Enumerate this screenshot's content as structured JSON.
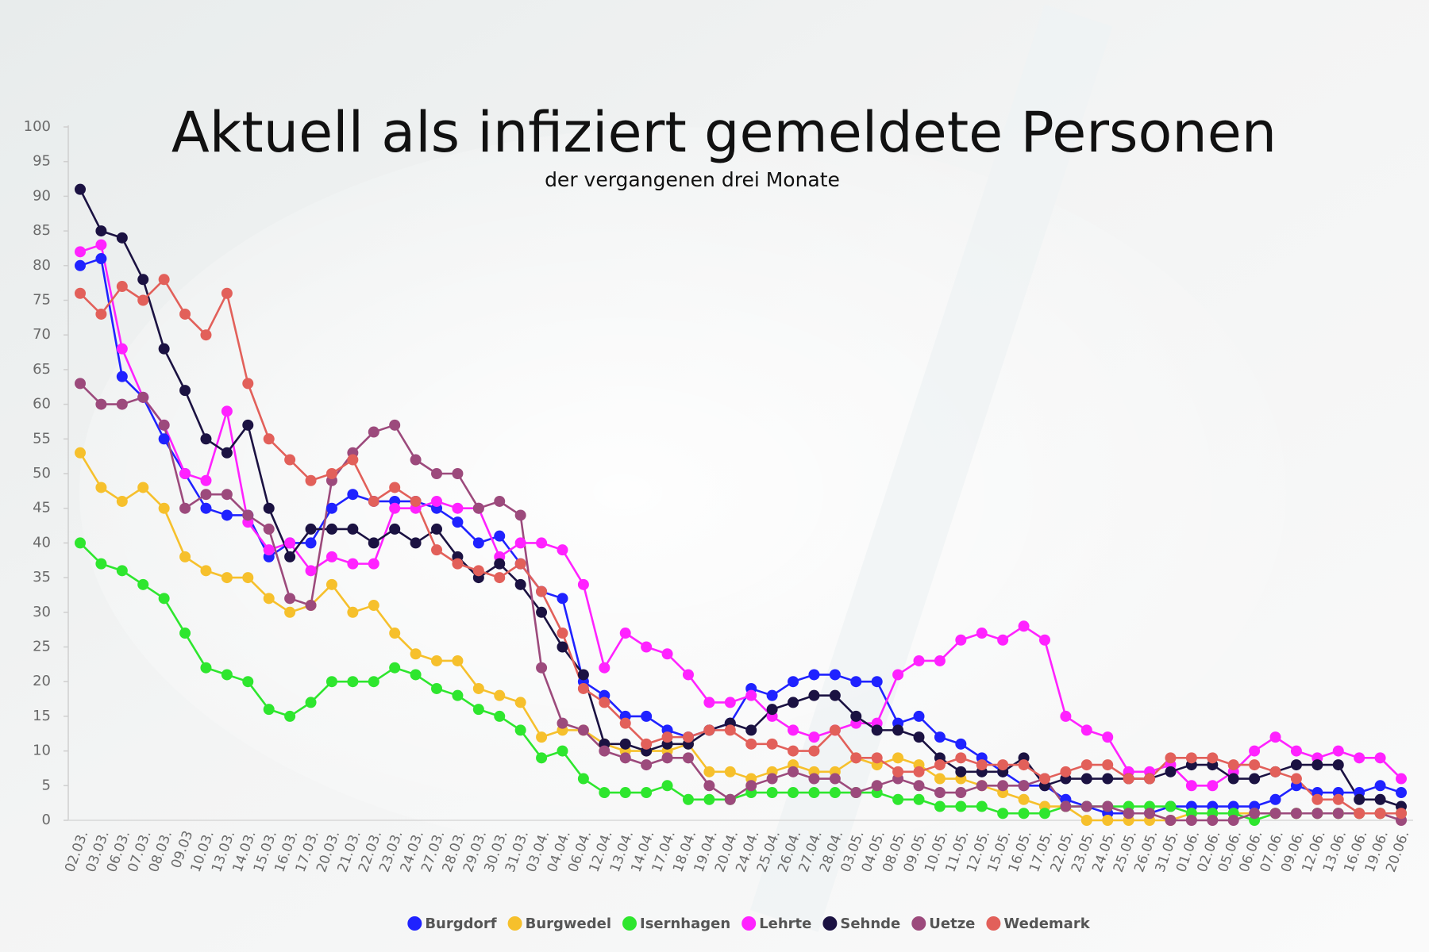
{
  "chart_data": {
    "type": "line",
    "title": "Aktuell als infiziert gemeldete Personen",
    "subtitle": "der vergangenen drei Monate",
    "categories": [
      "02.03.",
      "03.03.",
      "06.03.",
      "07.03.",
      "08.03.",
      "09.03",
      "10.03.",
      "13.03.",
      "14.03.",
      "15.03.",
      "16.03.",
      "17.03.",
      "20.03.",
      "21.03.",
      "22.03.",
      "23.03.",
      "24.03.",
      "27.03.",
      "28.03.",
      "29.03.",
      "30.03.",
      "31.03.",
      "03.04.",
      "04.04.",
      "06.04.",
      "12.04.",
      "13.04.",
      "14.04.",
      "17.04.",
      "18.04.",
      "19.04.",
      "20.04.",
      "24.04.",
      "25.04.",
      "26.04.",
      "27.04.",
      "28.04.",
      "03.05.",
      "04.05.",
      "08.05.",
      "09.05.",
      "10.05.",
      "11.05.",
      "12.05.",
      "15.05.",
      "16.05.",
      "17.05.",
      "22.05.",
      "23.05.",
      "24.05.",
      "25.05.",
      "26.05.",
      "31.05.",
      "01.06.",
      "02.06.",
      "05.06.",
      "06.06.",
      "07.06.",
      "09.06.",
      "12.06.",
      "13.06.",
      "16.06.",
      "19.06.",
      "20.06."
    ],
    "series": [
      {
        "name": "Burgdorf",
        "color": "#1f22ff",
        "values": [
          80,
          81,
          64,
          61,
          55,
          50,
          45,
          44,
          44,
          38,
          40,
          40,
          45,
          47,
          46,
          46,
          46,
          45,
          43,
          40,
          41,
          37,
          33,
          32,
          20,
          18,
          15,
          15,
          13,
          12,
          13,
          14,
          19,
          18,
          20,
          21,
          21,
          20,
          20,
          14,
          15,
          12,
          11,
          9,
          7,
          5,
          5,
          3,
          2,
          1,
          1,
          1,
          2,
          2,
          2,
          2,
          2,
          3,
          5,
          4,
          4,
          4,
          5,
          4
        ]
      },
      {
        "name": "Burgwedel",
        "color": "#f6c02c",
        "values": [
          53,
          48,
          46,
          48,
          45,
          38,
          36,
          35,
          35,
          32,
          30,
          31,
          34,
          30,
          31,
          27,
          24,
          23,
          23,
          19,
          18,
          17,
          12,
          13,
          13,
          11,
          10,
          10,
          10,
          11,
          7,
          7,
          6,
          7,
          8,
          7,
          7,
          9,
          8,
          9,
          8,
          6,
          6,
          5,
          4,
          3,
          2,
          2,
          0,
          0,
          0,
          0,
          0,
          1,
          1,
          1,
          1,
          1,
          1,
          1,
          1,
          1,
          1,
          1
        ]
      },
      {
        "name": "Isernhagen",
        "color": "#2ee62e",
        "values": [
          40,
          37,
          36,
          34,
          32,
          27,
          22,
          21,
          20,
          16,
          15,
          17,
          20,
          20,
          20,
          22,
          21,
          19,
          18,
          16,
          15,
          13,
          9,
          10,
          6,
          4,
          4,
          4,
          5,
          3,
          3,
          3,
          4,
          4,
          4,
          4,
          4,
          4,
          4,
          3,
          3,
          2,
          2,
          2,
          1,
          1,
          1,
          2,
          2,
          2,
          2,
          2,
          2,
          1,
          1,
          1,
          0,
          1,
          1,
          1,
          1,
          1,
          1,
          1
        ]
      },
      {
        "name": "Lehrte",
        "color": "#ff22ff",
        "values": [
          82,
          83,
          68,
          61,
          57,
          50,
          49,
          59,
          43,
          39,
          40,
          36,
          38,
          37,
          37,
          45,
          45,
          46,
          45,
          45,
          38,
          40,
          40,
          39,
          34,
          22,
          27,
          25,
          24,
          21,
          17,
          17,
          18,
          15,
          13,
          12,
          13,
          14,
          14,
          21,
          23,
          23,
          26,
          27,
          26,
          28,
          26,
          15,
          13,
          12,
          7,
          7,
          8,
          5,
          5,
          7,
          10,
          12,
          10,
          9,
          10,
          9,
          9,
          6
        ]
      },
      {
        "name": "Sehnde",
        "color": "#1b1242",
        "values": [
          91,
          85,
          84,
          78,
          68,
          62,
          55,
          53,
          57,
          45,
          38,
          42,
          42,
          42,
          40,
          42,
          40,
          42,
          38,
          35,
          37,
          34,
          30,
          25,
          21,
          11,
          11,
          10,
          11,
          11,
          13,
          14,
          13,
          16,
          17,
          18,
          18,
          15,
          13,
          13,
          12,
          9,
          7,
          7,
          7,
          9,
          5,
          6,
          6,
          6,
          6,
          6,
          7,
          8,
          8,
          6,
          6,
          7,
          8,
          8,
          8,
          3,
          3,
          2
        ]
      },
      {
        "name": "Uetze",
        "color": "#9c4a7c",
        "values": [
          63,
          60,
          60,
          61,
          57,
          45,
          47,
          47,
          44,
          42,
          32,
          31,
          49,
          53,
          56,
          57,
          52,
          50,
          50,
          45,
          46,
          44,
          22,
          14,
          13,
          10,
          9,
          8,
          9,
          9,
          5,
          3,
          5,
          6,
          7,
          6,
          6,
          4,
          5,
          6,
          5,
          4,
          4,
          5,
          5,
          5,
          6,
          2,
          2,
          2,
          1,
          1,
          0,
          0,
          0,
          0,
          1,
          1,
          1,
          1,
          1,
          1,
          1,
          0
        ]
      },
      {
        "name": "Wedemark",
        "color": "#e2605a",
        "values": [
          76,
          73,
          77,
          75,
          78,
          73,
          70,
          76,
          63,
          55,
          52,
          49,
          50,
          52,
          46,
          48,
          46,
          39,
          37,
          36,
          35,
          37,
          33,
          27,
          19,
          17,
          14,
          11,
          12,
          12,
          13,
          13,
          11,
          11,
          10,
          10,
          13,
          9,
          9,
          7,
          7,
          8,
          9,
          8,
          8,
          8,
          6,
          7,
          8,
          8,
          6,
          6,
          9,
          9,
          9,
          8,
          8,
          7,
          6,
          3,
          3,
          1,
          1,
          1
        ]
      }
    ],
    "ylim": [
      0,
      100
    ],
    "yticks": [
      0,
      5,
      10,
      15,
      20,
      25,
      30,
      35,
      40,
      45,
      50,
      55,
      60,
      65,
      70,
      75,
      80,
      85,
      90,
      95,
      100
    ],
    "grid": false,
    "legend": "bottom"
  }
}
